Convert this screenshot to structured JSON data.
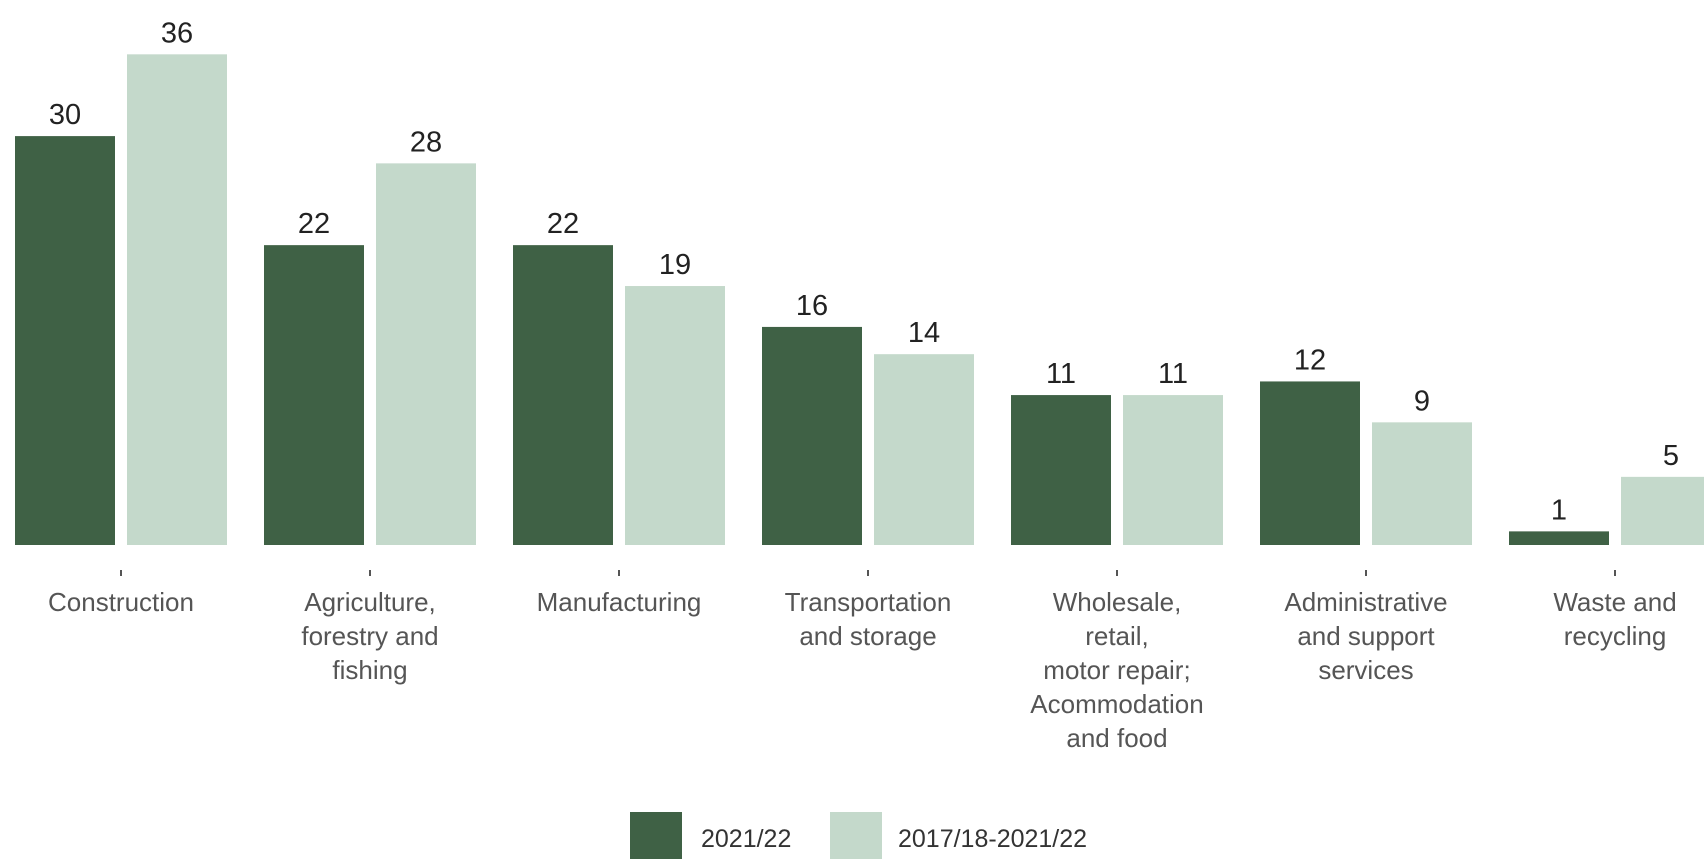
{
  "chart_data": {
    "type": "bar",
    "categories": [
      [
        "Construction"
      ],
      [
        "Agriculture,",
        "forestry and",
        "fishing"
      ],
      [
        "Manufacturing"
      ],
      [
        "Transportation",
        "and storage"
      ],
      [
        "Wholesale,",
        "retail,",
        "motor repair;",
        "Acommodation",
        "and food"
      ],
      [
        "Administrative",
        "and support",
        "services"
      ],
      [
        "Waste and",
        "recycling"
      ]
    ],
    "series": [
      {
        "name": "2021/22",
        "color": "#3f6145",
        "values": [
          30,
          22,
          22,
          16,
          11,
          12,
          1
        ]
      },
      {
        "name": "2017/18-2021/22",
        "color": "#c4d9cb",
        "values": [
          36,
          28,
          19,
          14,
          11,
          9,
          5
        ]
      }
    ],
    "ylim": [
      0,
      36
    ],
    "grid": false,
    "legend_position": "bottom"
  }
}
